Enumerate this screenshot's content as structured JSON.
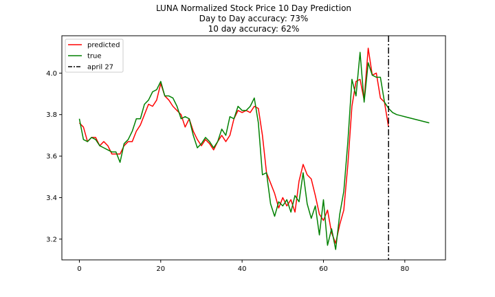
{
  "chart_data": {
    "type": "line",
    "title": [
      "LUNA Normalized Stock Price 10 Day Prediction",
      "Day to Day accuracy: 73%",
      "10 day accuracy: 62%"
    ],
    "xlabel": "",
    "ylabel": "",
    "xlim": [
      -4.3,
      90
    ],
    "ylim": [
      3.1,
      4.18
    ],
    "xticks": [
      0,
      20,
      40,
      60,
      80
    ],
    "yticks": [
      3.2,
      3.4,
      3.6,
      3.8,
      4.0
    ],
    "xtick_labels": [
      "0",
      "20",
      "40",
      "60",
      "80"
    ],
    "ytick_labels": [
      "3.2",
      "3.4",
      "3.6",
      "3.8",
      "4.0"
    ],
    "grid": false,
    "legend_position": "upper-left",
    "series": [
      {
        "name": "predicted",
        "color": "#ff0000",
        "x": [
          0,
          1,
          2,
          3,
          4,
          5,
          6,
          7,
          8,
          9,
          10,
          11,
          12,
          13,
          14,
          15,
          16,
          17,
          18,
          19,
          20,
          21,
          22,
          23,
          24,
          25,
          26,
          27,
          28,
          29,
          30,
          31,
          32,
          33,
          34,
          35,
          36,
          37,
          38,
          39,
          40,
          41,
          42,
          43,
          44,
          45,
          46,
          47,
          48,
          49,
          50,
          51,
          52,
          53,
          54,
          55,
          56,
          57,
          58,
          59,
          60,
          61,
          62,
          63,
          64,
          65,
          66,
          67,
          68,
          69,
          70,
          71,
          72,
          73,
          74,
          75,
          76
        ],
        "y": [
          3.76,
          3.74,
          3.67,
          3.69,
          3.69,
          3.65,
          3.67,
          3.65,
          3.61,
          3.61,
          3.61,
          3.65,
          3.67,
          3.67,
          3.72,
          3.75,
          3.8,
          3.85,
          3.84,
          3.87,
          3.95,
          3.89,
          3.87,
          3.84,
          3.82,
          3.8,
          3.74,
          3.78,
          3.72,
          3.68,
          3.65,
          3.68,
          3.66,
          3.63,
          3.67,
          3.7,
          3.67,
          3.7,
          3.78,
          3.82,
          3.81,
          3.82,
          3.81,
          3.84,
          3.83,
          3.7,
          3.52,
          3.47,
          3.42,
          3.35,
          3.4,
          3.36,
          3.39,
          3.33,
          3.48,
          3.56,
          3.51,
          3.49,
          3.41,
          3.32,
          3.29,
          3.34,
          3.23,
          3.18,
          3.27,
          3.34,
          3.56,
          3.84,
          3.96,
          3.97,
          3.87,
          4.12,
          3.99,
          4.0,
          3.88,
          3.86,
          3.74
        ]
      },
      {
        "name": "true",
        "color": "#008000",
        "x": [
          0,
          1,
          2,
          3,
          4,
          5,
          6,
          7,
          8,
          9,
          10,
          11,
          12,
          13,
          14,
          15,
          16,
          17,
          18,
          19,
          20,
          21,
          22,
          23,
          24,
          25,
          26,
          27,
          28,
          29,
          30,
          31,
          32,
          33,
          34,
          35,
          36,
          37,
          38,
          39,
          40,
          41,
          42,
          43,
          44,
          45,
          46,
          47,
          48,
          49,
          50,
          51,
          52,
          53,
          54,
          55,
          56,
          57,
          58,
          59,
          60,
          61,
          62,
          63,
          64,
          65,
          66,
          67,
          68,
          69,
          70,
          71,
          72,
          73,
          74,
          75,
          76,
          77,
          78,
          79,
          80,
          81,
          82,
          83,
          84,
          85,
          86
        ],
        "y": [
          3.78,
          3.68,
          3.67,
          3.69,
          3.68,
          3.65,
          3.64,
          3.63,
          3.62,
          3.62,
          3.57,
          3.66,
          3.68,
          3.72,
          3.78,
          3.78,
          3.85,
          3.87,
          3.91,
          3.92,
          3.96,
          3.89,
          3.89,
          3.88,
          3.84,
          3.78,
          3.79,
          3.78,
          3.7,
          3.64,
          3.66,
          3.69,
          3.67,
          3.64,
          3.67,
          3.73,
          3.7,
          3.79,
          3.78,
          3.84,
          3.82,
          3.82,
          3.84,
          3.88,
          3.76,
          3.51,
          3.52,
          3.37,
          3.31,
          3.38,
          3.36,
          3.39,
          3.33,
          3.41,
          3.38,
          3.52,
          3.37,
          3.3,
          3.36,
          3.22,
          3.39,
          3.17,
          3.25,
          3.15,
          3.32,
          3.43,
          3.67,
          3.97,
          3.89,
          4.1,
          3.86,
          4.05,
          3.99,
          3.98,
          3.98,
          3.86,
          3.83,
          3.81,
          3.8,
          3.795,
          3.79,
          3.785,
          3.78,
          3.775,
          3.77,
          3.765,
          3.76
        ]
      }
    ],
    "vline": {
      "label": "april 27",
      "x": 76,
      "color": "#000000",
      "style": "dashdot"
    }
  }
}
